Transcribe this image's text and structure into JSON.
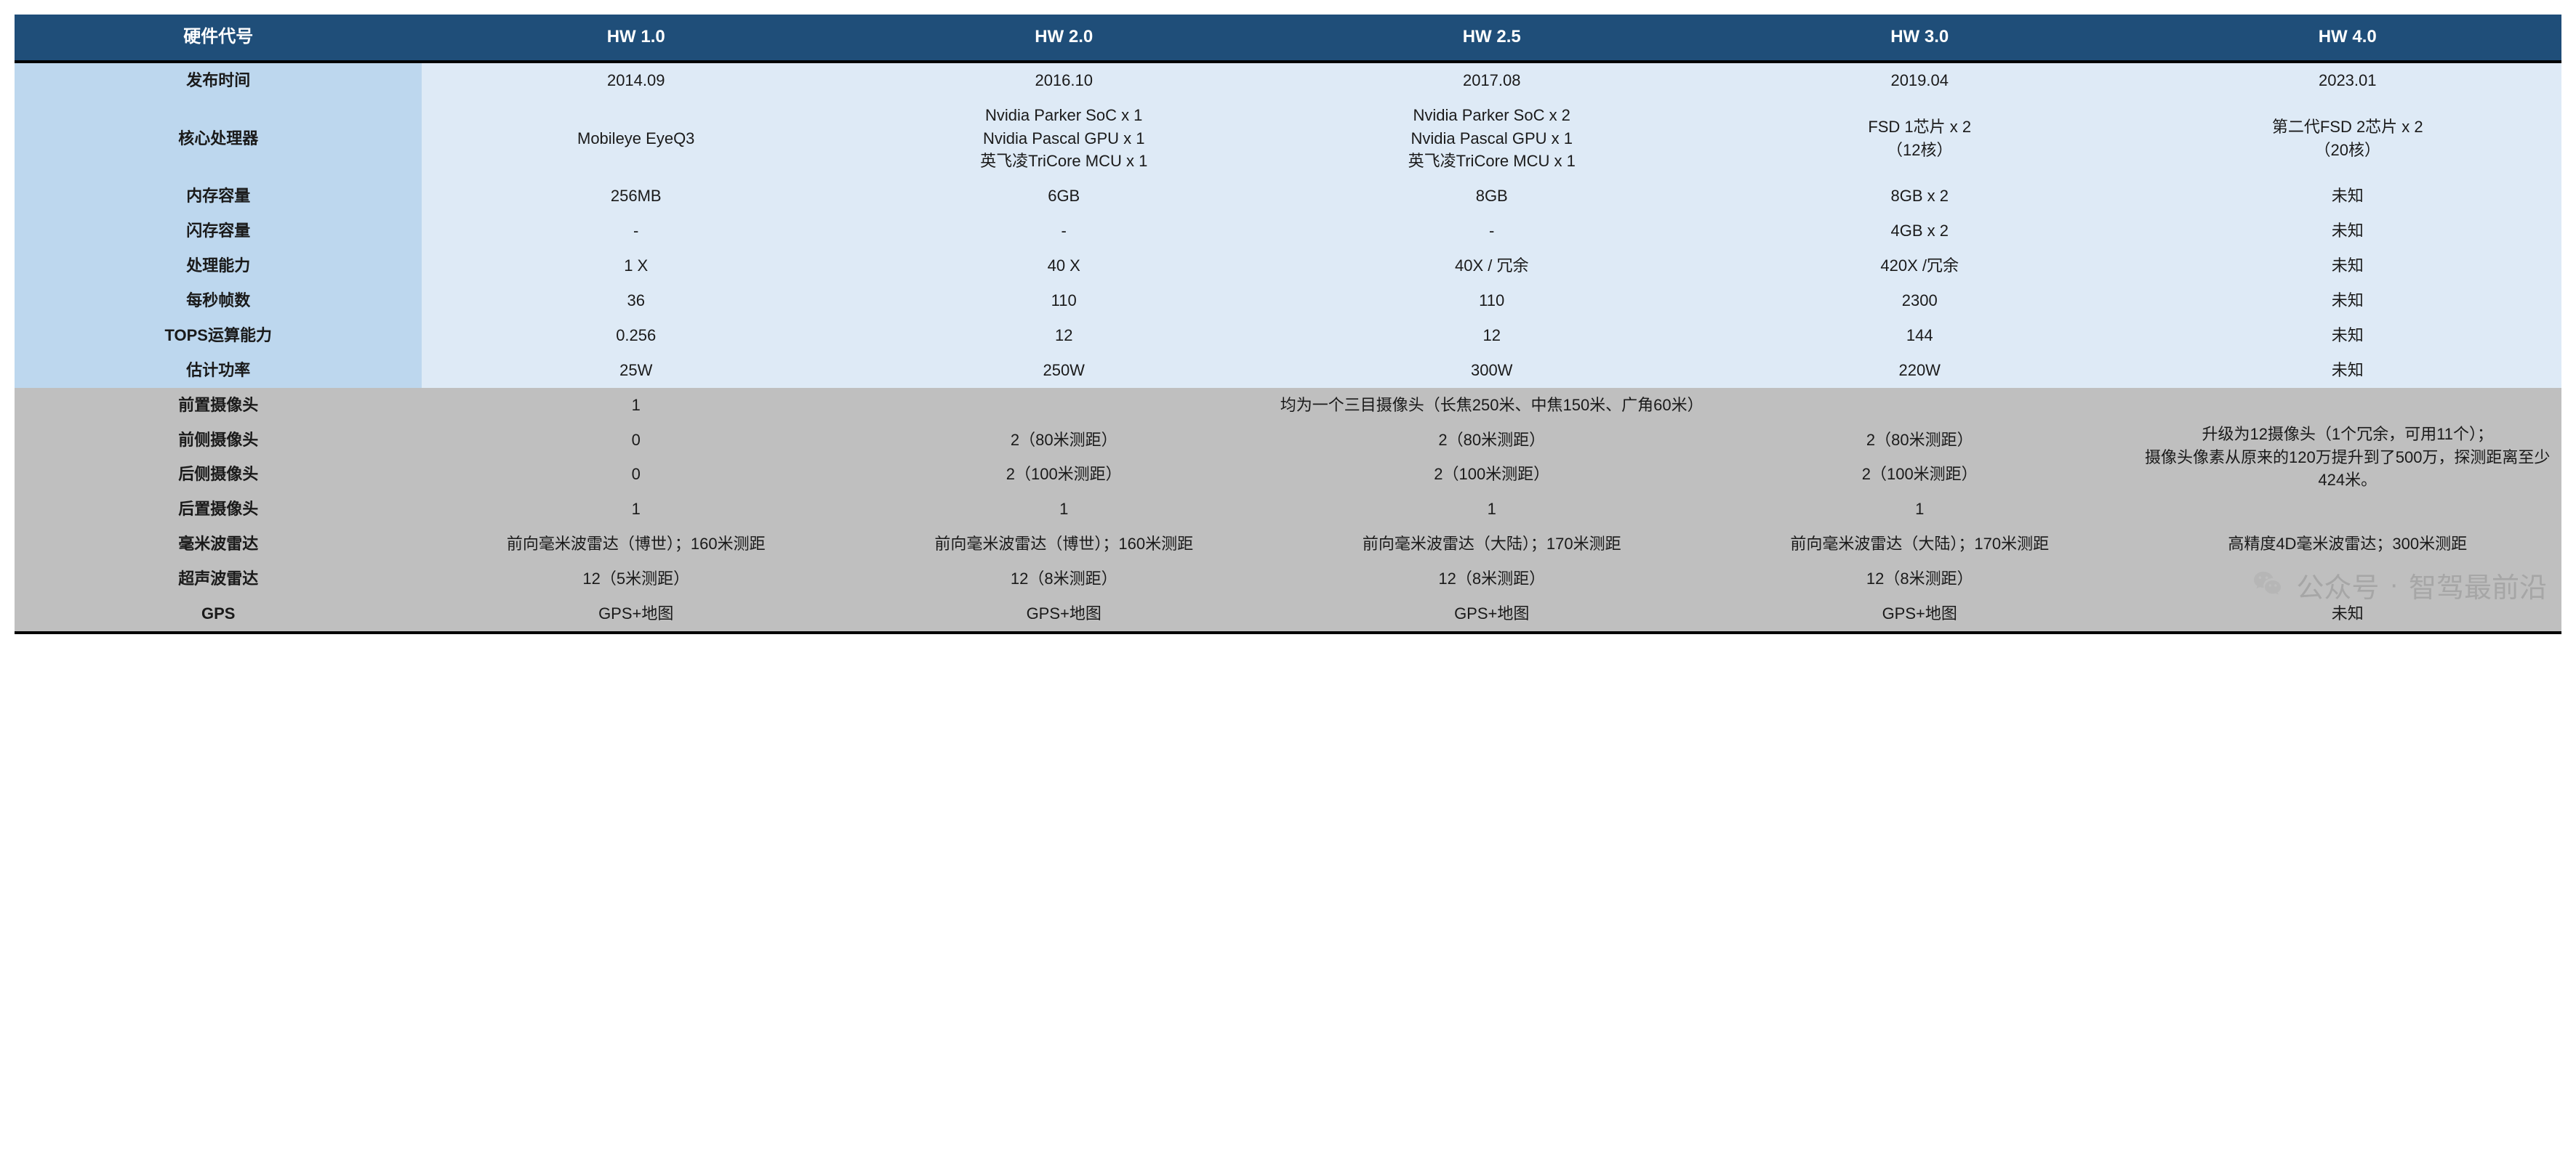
{
  "colors": {
    "header_bg": "#1f4e79",
    "header_fg": "#ffffff",
    "section_top_row_head_bg": "#bdd7ee",
    "section_top_cell_bg": "#deeaf6",
    "section_bottom_bg": "#bfbfbf",
    "border_rule": "#000000",
    "watermark_fg": "rgba(120,120,120,0.35)"
  },
  "typography": {
    "header_fontsize": 24,
    "cell_fontsize": 22,
    "font_family": "Arial, Microsoft YaHei"
  },
  "table": {
    "type": "table",
    "columns": [
      "硬件代号",
      "HW 1.0",
      "HW 2.0",
      "HW 2.5",
      "HW 3.0",
      "HW 4.0"
    ],
    "section_top": [
      {
        "label": "发布时间",
        "cells": [
          "2014.09",
          "2016.10",
          "2017.08",
          "2019.04",
          "2023.01"
        ]
      },
      {
        "label": "核心处理器",
        "cells": [
          "Mobileye EyeQ3",
          "Nvidia Parker SoC x 1\nNvidia Pascal GPU x 1\n英飞凌TriCore MCU x 1",
          "Nvidia Parker SoC x 2\nNvidia Pascal GPU x 1\n英飞凌TriCore MCU x 1",
          "FSD 1芯片 x 2\n（12核）",
          "第二代FSD 2芯片 x 2\n（20核）"
        ]
      },
      {
        "label": "内存容量",
        "cells": [
          "256MB",
          "6GB",
          "8GB",
          "8GB x 2",
          "未知"
        ]
      },
      {
        "label": "闪存容量",
        "cells": [
          "-",
          "-",
          "-",
          "4GB x 2",
          "未知"
        ]
      },
      {
        "label": "处理能力",
        "cells": [
          "1 X",
          "40 X",
          "40X / 冗余",
          "420X /冗余",
          "未知"
        ]
      },
      {
        "label": "每秒帧数",
        "cells": [
          "36",
          "110",
          "110",
          "2300",
          "未知"
        ]
      },
      {
        "label": "TOPS运算能力",
        "cells": [
          "0.256",
          "12",
          "12",
          "144",
          "未知"
        ]
      },
      {
        "label": "估计功率",
        "cells": [
          "25W",
          "250W",
          "300W",
          "220W",
          "未知"
        ]
      }
    ],
    "section_bottom": {
      "merged_last_col": "升级为12摄像头（1个冗余，可用11个）；\n摄像头像素从原来的120万提升到了500万，探测距离至少424米。",
      "front_cam": {
        "label": "前置摄像头",
        "hw1": "1",
        "merged_234": "均为一个三目摄像头（长焦250米、中焦150米、广角60米）"
      },
      "front_side_cam": {
        "label": "前侧摄像头",
        "cells": [
          "0",
          "2（80米测距）",
          "2（80米测距）",
          "2（80米测距）"
        ]
      },
      "rear_side_cam": {
        "label": "后侧摄像头",
        "cells": [
          "0",
          "2（100米测距）",
          "2（100米测距）",
          "2（100米测距）"
        ]
      },
      "rear_cam": {
        "label": "后置摄像头",
        "cells": [
          "1",
          "1",
          "1",
          "1"
        ]
      },
      "mmwave": {
        "label": "毫米波雷达",
        "cells": [
          "前向毫米波雷达（博世）；160米测距",
          "前向毫米波雷达（博世）；160米测距",
          "前向毫米波雷达（大陆）；170米测距",
          "前向毫米波雷达（大陆）；170米测距",
          "高精度4D毫米波雷达；300米测距"
        ]
      },
      "ultrasonic": {
        "label": "超声波雷达",
        "cells": [
          "12（5米测距）",
          "12（8米测距）",
          "12（8米测距）",
          "12（8米测距）",
          ""
        ]
      },
      "gps": {
        "label": "GPS",
        "cells": [
          "GPS+地图",
          "GPS+地图",
          "GPS+地图",
          "GPS+地图",
          "未知"
        ]
      }
    }
  },
  "watermark": {
    "prefix": "公众号",
    "dot": "·",
    "name": "智驾最前沿"
  }
}
